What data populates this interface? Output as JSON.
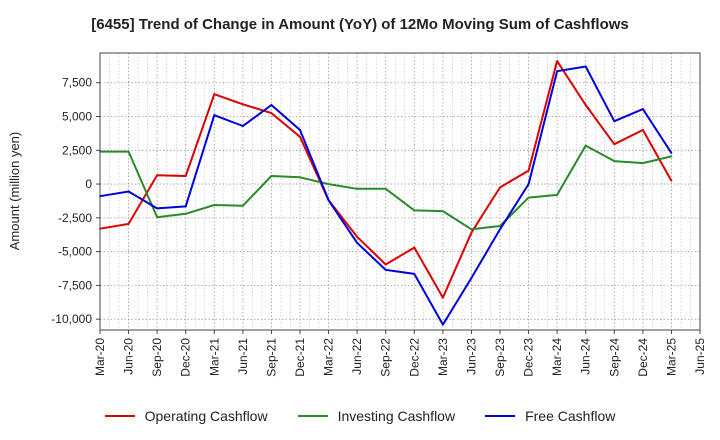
{
  "chart_data": {
    "type": "line",
    "title": "[6455]  Trend of Change in Amount (YoY) of 12Mo Moving Sum of Cashflows",
    "xlabel": "",
    "ylabel": "Amount (million yen)",
    "ylim": [
      -10800,
      9700
    ],
    "yticks": [
      7500,
      5000,
      2500,
      0,
      -2500,
      -5000,
      -7500,
      -10000
    ],
    "ytick_labels": [
      "7,500",
      "5,000",
      "2,500",
      "0",
      "-2,500",
      "-5,000",
      "-7,500",
      "-10,000"
    ],
    "categories": [
      "Mar-20",
      "Jun-20",
      "Sep-20",
      "Dec-20",
      "Mar-21",
      "Jun-21",
      "Sep-21",
      "Dec-21",
      "Mar-22",
      "Jun-22",
      "Sep-22",
      "Dec-22",
      "Mar-23",
      "Jun-23",
      "Sep-23",
      "Dec-23",
      "Mar-24",
      "Jun-24",
      "Sep-24",
      "Dec-24",
      "Mar-25",
      "Jun-25"
    ],
    "grid": true,
    "legend_position": "bottom",
    "series": [
      {
        "name": "Operating Cashflow",
        "color": "#dd0000",
        "values": [
          -3300,
          -2950,
          650,
          600,
          6650,
          5900,
          5250,
          3500,
          -1200,
          -3900,
          -5950,
          -4700,
          -8400,
          -3600,
          -250,
          1000,
          9100,
          5850,
          2950,
          4000,
          250,
          null
        ]
      },
      {
        "name": "Investing Cashflow",
        "color": "#2a8a2a",
        "values": [
          2400,
          2400,
          -2450,
          -2200,
          -1550,
          -1600,
          600,
          500,
          0,
          -350,
          -350,
          -1950,
          -2000,
          -3350,
          -3100,
          -1000,
          -800,
          2850,
          1700,
          1550,
          2050,
          null
        ]
      },
      {
        "name": "Free Cashflow",
        "color": "#0000dd",
        "values": [
          -900,
          -550,
          -1800,
          -1650,
          5100,
          4300,
          5850,
          4000,
          -1200,
          -4350,
          -6350,
          -6650,
          -10400,
          -6950,
          -3350,
          0,
          8350,
          8700,
          4650,
          5550,
          2300,
          null
        ]
      }
    ]
  }
}
